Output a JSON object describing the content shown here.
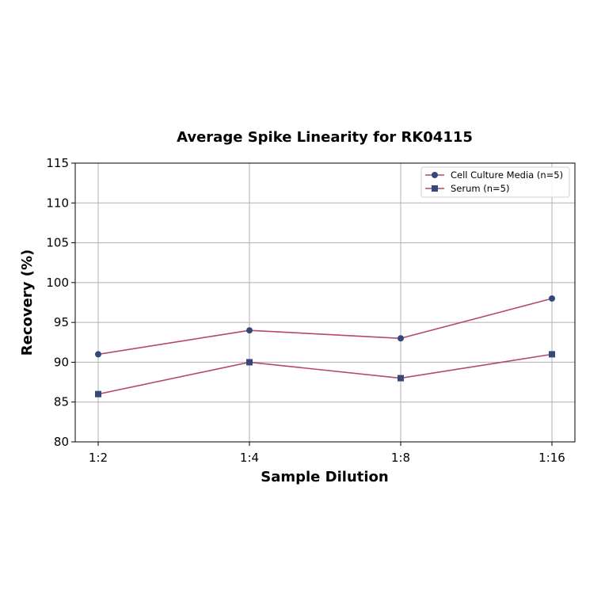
{
  "chart_data": {
    "type": "line",
    "title": "Average Spike Linearity for RK04115",
    "xlabel": "Sample Dilution",
    "ylabel": "Recovery (%)",
    "categories": [
      "1:2",
      "1:4",
      "1:8",
      "1:16"
    ],
    "series": [
      {
        "name": "Cell Culture Media (n=5)",
        "marker": "circle",
        "values": [
          91,
          94,
          93,
          98
        ]
      },
      {
        "name": "Serum (n=5)",
        "marker": "square",
        "values": [
          86,
          90,
          88,
          91
        ]
      }
    ],
    "ylim": [
      80,
      115
    ],
    "yticks": [
      80,
      85,
      90,
      95,
      100,
      105,
      110,
      115
    ],
    "grid": true,
    "legend_position": "upper right",
    "colors": {
      "line": "#b5476a",
      "marker": "#34497a"
    }
  }
}
